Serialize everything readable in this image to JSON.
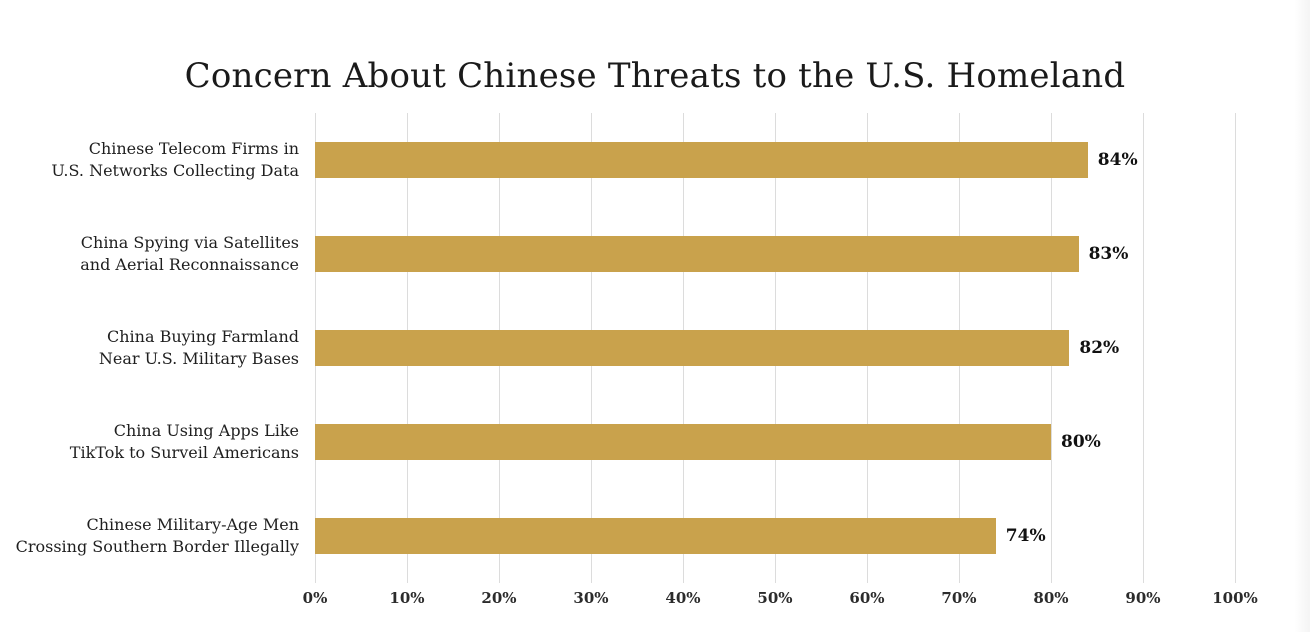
{
  "chart_data": {
    "type": "bar",
    "orientation": "horizontal",
    "title": "Concern About Chinese Threats to the U.S. Homeland",
    "categories": [
      "Chinese Telecom Firms in\nU.S. Networks Collecting Data",
      "China Spying via Satellites\nand Aerial Reconnaissance",
      "China Buying Farmland\nNear U.S. Military Bases",
      "China Using Apps Like\nTikTok to Surveil Americans",
      "Chinese Military-Age Men\nCrossing Southern Border Illegally"
    ],
    "values": [
      84,
      83,
      82,
      80,
      74
    ],
    "value_labels": [
      "84%",
      "83%",
      "82%",
      "80%",
      "74%"
    ],
    "xlabel": "",
    "ylabel": "",
    "xlim": [
      0,
      100
    ],
    "x_ticks": [
      0,
      10,
      20,
      30,
      40,
      50,
      60,
      70,
      80,
      90,
      100
    ],
    "x_tick_labels": [
      "0%",
      "10%",
      "20%",
      "30%",
      "40%",
      "50%",
      "60%",
      "70%",
      "80%",
      "90%",
      "100%"
    ],
    "grid": "vertical-only",
    "legend": "none",
    "bar_color": "#C9A24C",
    "gridline_color": "#DCDCDC",
    "title_color": "#1A1A1A",
    "label_color": "#1F1F1F",
    "value_label_color": "#111111"
  }
}
